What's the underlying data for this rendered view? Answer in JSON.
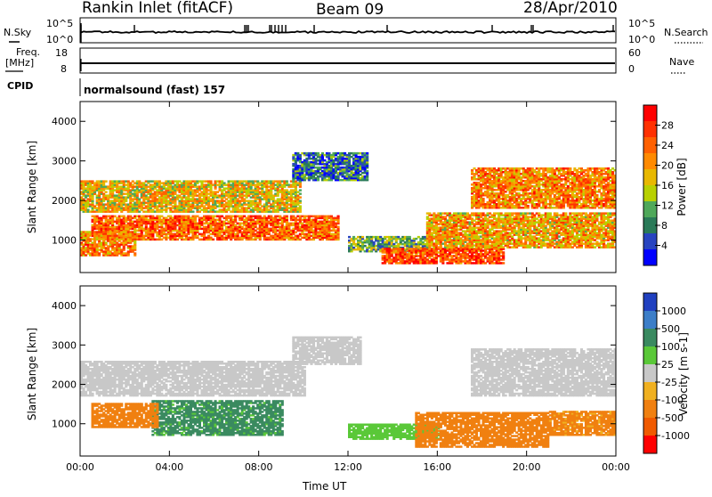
{
  "header": {
    "station": "Rankin Inlet (fitACF)",
    "beam": "Beam 09",
    "date": "28/Apr/2010"
  },
  "strips": {
    "nsky_label": "N.Sky",
    "nsky_ticks": [
      "10^5",
      "10^0"
    ],
    "nsearch_label": "N.Search",
    "nsearch_ticks": [
      "10^5",
      "10^0"
    ],
    "freq_label": "Freq.",
    "freq_unit": "[MHz]",
    "freq_ticks": [
      "18",
      "8"
    ],
    "nave_label": "Nave",
    "nave_ticks": [
      "60",
      "0"
    ],
    "cpid_label": "CPID",
    "cpid_text": "normalsound (fast) 157"
  },
  "chart_data": [
    {
      "type": "heatmap",
      "title": "",
      "xlabel": "",
      "ylabel": "Slant Range [km]",
      "x_tick_labels": [
        "00:00",
        "04:00",
        "08:00",
        "12:00",
        "16:00",
        "20:00",
        "00:00"
      ],
      "ylim": [
        180,
        4500
      ],
      "y_ticks": [
        1000,
        2000,
        3000,
        4000
      ],
      "colorbar": {
        "label": "Power [dB]",
        "ticks": [
          "28",
          "24",
          "20",
          "16",
          "12",
          "8",
          "4"
        ],
        "colors": [
          "#ff0000",
          "#ff3000",
          "#ff6000",
          "#ff8a00",
          "#e8b800",
          "#b8d000",
          "#4fa85a",
          "#2a7a58",
          "#2844c0",
          "#0000ff"
        ]
      },
      "echo_bands": [
        {
          "t0": 0.0,
          "t1": 9.8,
          "r0": 1700,
          "r1": 2500,
          "value": 18
        },
        {
          "t0": 0.5,
          "t1": 11.5,
          "r0": 1000,
          "r1": 1600,
          "value": 24
        },
        {
          "t0": 0.0,
          "t1": 2.5,
          "r0": 600,
          "r1": 1200,
          "value": 22
        },
        {
          "t0": 9.5,
          "t1": 12.8,
          "r0": 2500,
          "r1": 3200,
          "value": 8
        },
        {
          "t0": 12.0,
          "t1": 15.5,
          "r0": 700,
          "r1": 1100,
          "value": 12
        },
        {
          "t0": 13.5,
          "t1": 19.0,
          "r0": 400,
          "r1": 800,
          "value": 26
        },
        {
          "t0": 15.5,
          "t1": 24.0,
          "r0": 800,
          "r1": 1700,
          "value": 20
        },
        {
          "t0": 17.5,
          "t1": 24.0,
          "r0": 1800,
          "r1": 2800,
          "value": 22
        }
      ]
    },
    {
      "type": "heatmap",
      "title": "",
      "xlabel": "Time UT",
      "ylabel": "Slant Range [km]",
      "x_tick_labels": [
        "00:00",
        "04:00",
        "08:00",
        "12:00",
        "16:00",
        "20:00",
        "00:00"
      ],
      "ylim": [
        180,
        4500
      ],
      "y_ticks": [
        1000,
        2000,
        3000,
        4000
      ],
      "colorbar": {
        "label": "Velocity [m s-1]",
        "ticks": [
          "1000",
          "500",
          "100",
          "25",
          "-25",
          "-100",
          "-500",
          "-1000"
        ],
        "colors": [
          "#2040c0",
          "#3c7ec8",
          "#3a8a60",
          "#5ac838",
          "#c8c8c8",
          "#f0b020",
          "#f08010",
          "#f05a00",
          "#ff0000"
        ]
      },
      "echo_bands": [
        {
          "t0": 0.0,
          "t1": 10.0,
          "r0": 1700,
          "r1": 2600,
          "value": 0
        },
        {
          "t0": 9.5,
          "t1": 12.5,
          "r0": 2500,
          "r1": 3200,
          "value": 0
        },
        {
          "t0": 3.2,
          "t1": 9.0,
          "r0": 700,
          "r1": 1600,
          "value": 150
        },
        {
          "t0": 0.5,
          "t1": 3.5,
          "r0": 900,
          "r1": 1500,
          "value": -300
        },
        {
          "t0": 12.0,
          "t1": 16.0,
          "r0": 600,
          "r1": 1000,
          "value": 60
        },
        {
          "t0": 15.0,
          "t1": 21.0,
          "r0": 400,
          "r1": 1300,
          "value": -300
        },
        {
          "t0": 17.5,
          "t1": 24.0,
          "r0": 1700,
          "r1": 2900,
          "value": 0
        },
        {
          "t0": 21.0,
          "t1": 24.0,
          "r0": 700,
          "r1": 1300,
          "value": -150
        }
      ]
    }
  ]
}
